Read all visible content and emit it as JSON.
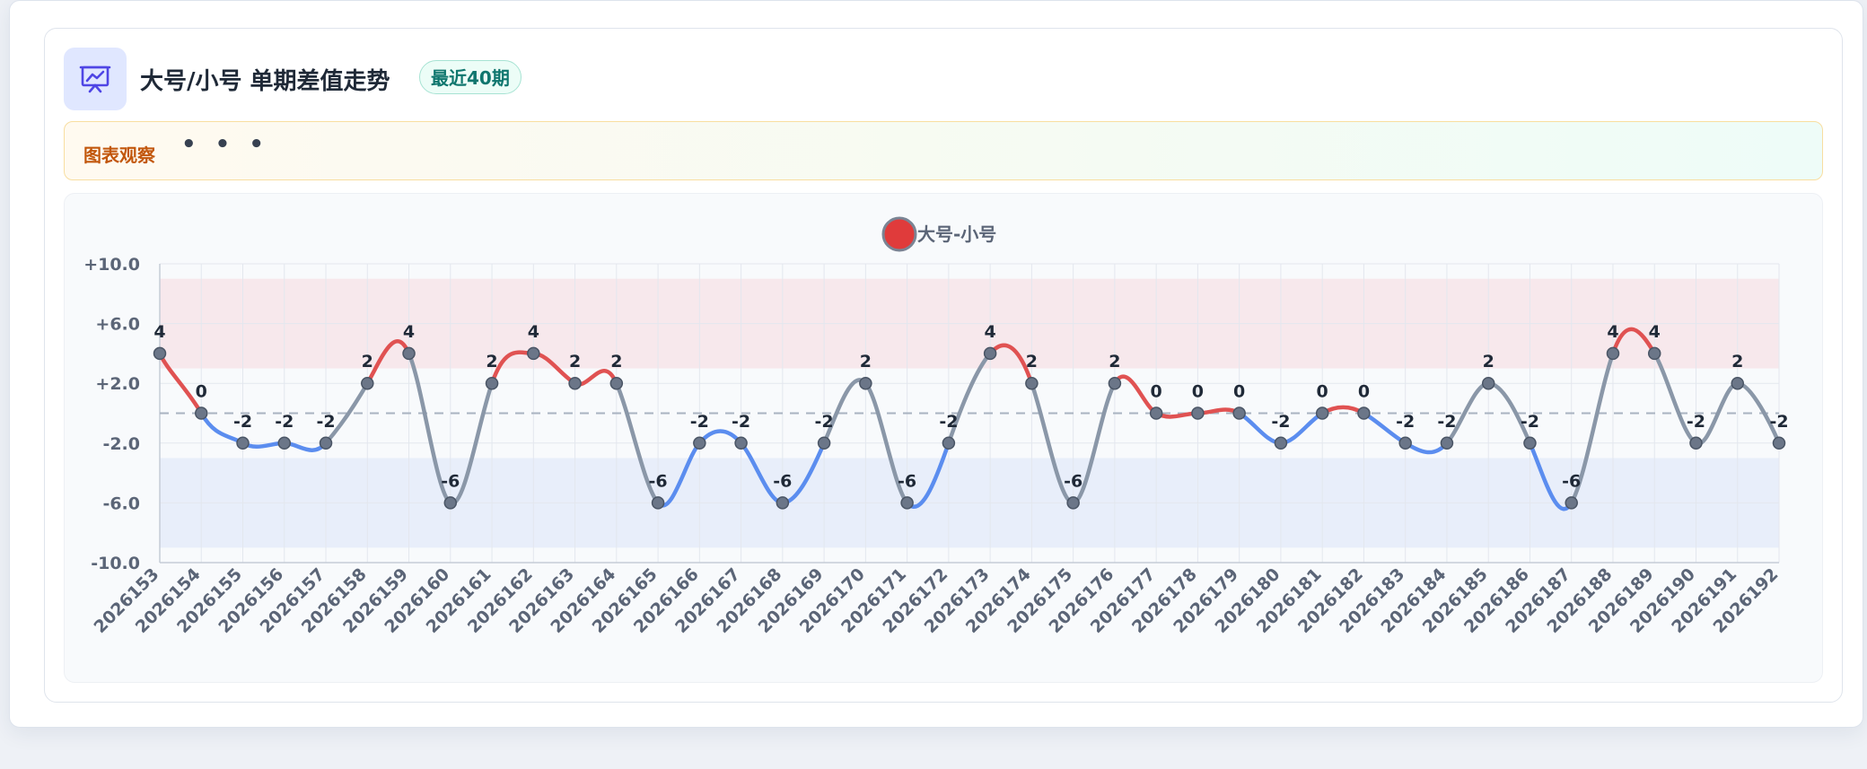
{
  "header": {
    "title": "大号/小号 单期差值走势",
    "badge": "最近40期"
  },
  "observation": {
    "label": "图表观察",
    "dots": "• • •"
  },
  "colors": {
    "positive": "#e05252",
    "negative": "#5b8def",
    "neutral": "#8a97a8",
    "upper_band": "#f7e8ec",
    "lower_band": "#e8eefa",
    "accent": "#4f46e5"
  },
  "chart_data": {
    "type": "line",
    "legend": {
      "name": "大号-小号",
      "placement": "top-center"
    },
    "categories": [
      "2026153",
      "2026154",
      "2026155",
      "2026156",
      "2026157",
      "2026158",
      "2026159",
      "2026160",
      "2026161",
      "2026162",
      "2026163",
      "2026164",
      "2026165",
      "2026166",
      "2026167",
      "2026168",
      "2026169",
      "2026170",
      "2026171",
      "2026172",
      "2026173",
      "2026174",
      "2026175",
      "2026176",
      "2026177",
      "2026178",
      "2026179",
      "2026180",
      "2026181",
      "2026182",
      "2026183",
      "2026184",
      "2026185",
      "2026186",
      "2026187",
      "2026188",
      "2026189",
      "2026190",
      "2026191",
      "2026192"
    ],
    "series": [
      {
        "name": "大号-小号",
        "values": [
          4,
          0,
          -2,
          -2,
          -2,
          2,
          4,
          -6,
          2,
          4,
          2,
          2,
          -6,
          -2,
          -2,
          -6,
          -2,
          2,
          -6,
          -2,
          4,
          2,
          -6,
          2,
          0,
          0,
          0,
          -2,
          0,
          0,
          -2,
          -2,
          2,
          -2,
          -6,
          4,
          4,
          -2,
          2,
          -2
        ]
      }
    ],
    "ylim": [
      -10,
      10
    ],
    "yticks": [
      {
        "value": 10,
        "label": "+10.0"
      },
      {
        "value": 6,
        "label": "+6.0"
      },
      {
        "value": 2,
        "label": "+2.0"
      },
      {
        "value": -2,
        "label": "-2.0"
      },
      {
        "value": -6,
        "label": "-6.0"
      },
      {
        "value": -10,
        "label": "-10.0"
      }
    ],
    "reference_line": 0,
    "bands": [
      {
        "from": 3,
        "to": 9,
        "tone": "upper"
      },
      {
        "from": -9,
        "to": -3,
        "tone": "lower"
      }
    ],
    "grid": true
  }
}
